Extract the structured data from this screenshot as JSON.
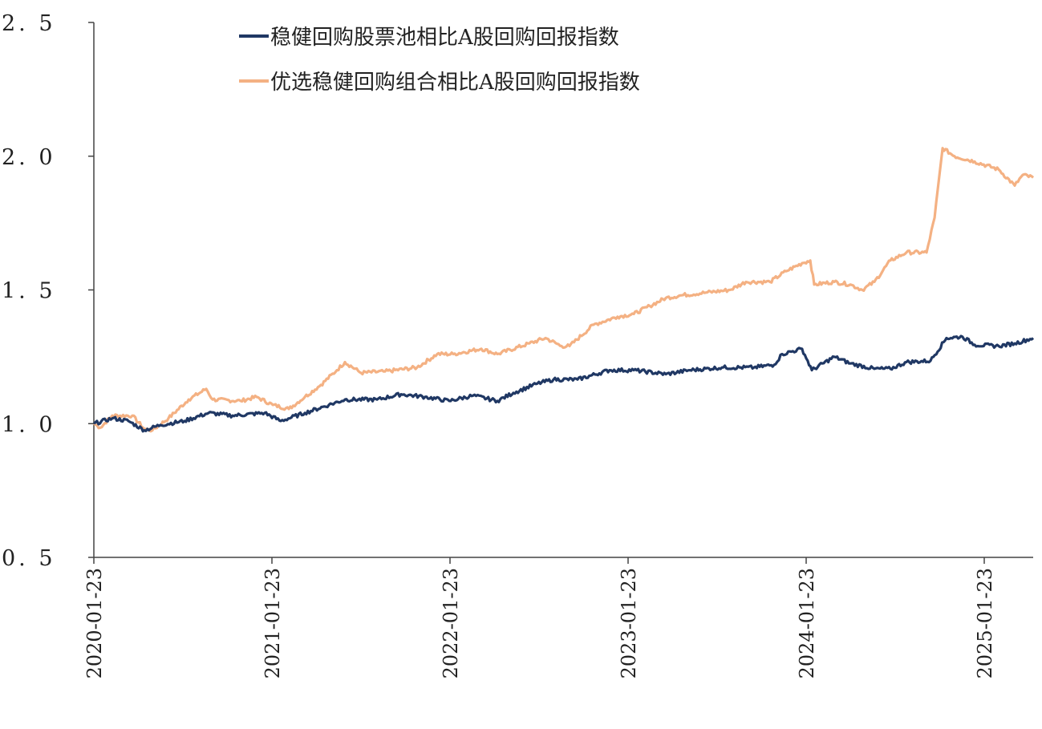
{
  "chart_data": {
    "type": "line",
    "title": "",
    "xlabel": "",
    "ylabel": "",
    "x_unit": "years since 2020-01-23",
    "ylim": [
      0.5,
      2.5
    ],
    "yticks": [
      "0. 5",
      "1. 0",
      "1. 5",
      "2. 0",
      "2. 5"
    ],
    "ytick_values": [
      0.5,
      1.0,
      1.5,
      2.0,
      2.5
    ],
    "xticks": [
      "2020-01-23",
      "2021-01-23",
      "2022-01-23",
      "2023-01-23",
      "2024-01-23",
      "2025-01-23"
    ],
    "xtick_values": [
      0,
      1,
      2,
      3,
      4,
      5
    ],
    "xlim": [
      0,
      5.275
    ],
    "grid": false,
    "legend_position": "top-center",
    "colors": {
      "series1": "#203864",
      "series2": "#f4b183"
    },
    "series": [
      {
        "name": "稳健回购股票池相比A股回购回报指数",
        "points": [
          [
            0,
            1.0
          ],
          [
            0.104,
            1.02
          ],
          [
            0.194,
            1.01
          ],
          [
            0.284,
            0.975
          ],
          [
            0.374,
            0.995
          ],
          [
            0.509,
            1.01
          ],
          [
            0.644,
            1.04
          ],
          [
            0.779,
            1.03
          ],
          [
            0.959,
            1.04
          ],
          [
            1.05,
            1.01
          ],
          [
            1.185,
            1.04
          ],
          [
            1.32,
            1.07
          ],
          [
            1.41,
            1.09
          ],
          [
            1.59,
            1.09
          ],
          [
            1.725,
            1.11
          ],
          [
            1.86,
            1.1
          ],
          [
            1.995,
            1.085
          ],
          [
            2.13,
            1.105
          ],
          [
            2.266,
            1.085
          ],
          [
            2.356,
            1.115
          ],
          [
            2.491,
            1.15
          ],
          [
            2.581,
            1.165
          ],
          [
            2.716,
            1.165
          ],
          [
            2.896,
            1.2
          ],
          [
            3.032,
            1.2
          ],
          [
            3.212,
            1.185
          ],
          [
            3.347,
            1.2
          ],
          [
            3.527,
            1.21
          ],
          [
            3.707,
            1.21
          ],
          [
            3.82,
            1.22
          ],
          [
            3.865,
            1.26
          ],
          [
            3.977,
            1.28
          ],
          [
            4.032,
            1.2
          ],
          [
            4.158,
            1.25
          ],
          [
            4.248,
            1.225
          ],
          [
            4.383,
            1.205
          ],
          [
            4.473,
            1.205
          ],
          [
            4.563,
            1.23
          ],
          [
            4.698,
            1.235
          ],
          [
            4.788,
            1.32
          ],
          [
            4.878,
            1.325
          ],
          [
            4.946,
            1.295
          ],
          [
            5.081,
            1.29
          ],
          [
            5.171,
            1.3
          ],
          [
            5.275,
            1.32
          ]
        ]
      },
      {
        "name": "优选稳健回购组合相比A股回购回报指数",
        "points": [
          [
            0,
            1.0
          ],
          [
            0.036,
            0.985
          ],
          [
            0.104,
            1.03
          ],
          [
            0.216,
            1.03
          ],
          [
            0.284,
            0.98
          ],
          [
            0.329,
            0.975
          ],
          [
            0.419,
            1.02
          ],
          [
            0.532,
            1.09
          ],
          [
            0.631,
            1.13
          ],
          [
            0.667,
            1.09
          ],
          [
            0.824,
            1.085
          ],
          [
            0.914,
            1.1
          ],
          [
            1.005,
            1.07
          ],
          [
            1.095,
            1.055
          ],
          [
            1.185,
            1.1
          ],
          [
            1.275,
            1.145
          ],
          [
            1.365,
            1.2
          ],
          [
            1.41,
            1.23
          ],
          [
            1.5,
            1.19
          ],
          [
            1.635,
            1.195
          ],
          [
            1.815,
            1.21
          ],
          [
            1.928,
            1.26
          ],
          [
            2.018,
            1.26
          ],
          [
            2.176,
            1.28
          ],
          [
            2.266,
            1.26
          ],
          [
            2.446,
            1.3
          ],
          [
            2.536,
            1.32
          ],
          [
            2.626,
            1.29
          ],
          [
            2.671,
            1.29
          ],
          [
            2.806,
            1.37
          ],
          [
            2.941,
            1.4
          ],
          [
            3.032,
            1.41
          ],
          [
            3.122,
            1.44
          ],
          [
            3.212,
            1.47
          ],
          [
            3.302,
            1.48
          ],
          [
            3.437,
            1.49
          ],
          [
            3.572,
            1.5
          ],
          [
            3.662,
            1.53
          ],
          [
            3.797,
            1.53
          ],
          [
            3.887,
            1.57
          ],
          [
            3.977,
            1.6
          ],
          [
            4.023,
            1.61
          ],
          [
            4.045,
            1.52
          ],
          [
            4.158,
            1.53
          ],
          [
            4.248,
            1.52
          ],
          [
            4.315,
            1.5
          ],
          [
            4.383,
            1.53
          ],
          [
            4.473,
            1.61
          ],
          [
            4.563,
            1.64
          ],
          [
            4.676,
            1.64
          ],
          [
            4.721,
            1.77
          ],
          [
            4.766,
            2.03
          ],
          [
            4.833,
            2.0
          ],
          [
            4.946,
            1.98
          ],
          [
            5.081,
            1.95
          ],
          [
            5.171,
            1.89
          ],
          [
            5.216,
            1.93
          ],
          [
            5.275,
            1.92
          ]
        ]
      }
    ]
  }
}
